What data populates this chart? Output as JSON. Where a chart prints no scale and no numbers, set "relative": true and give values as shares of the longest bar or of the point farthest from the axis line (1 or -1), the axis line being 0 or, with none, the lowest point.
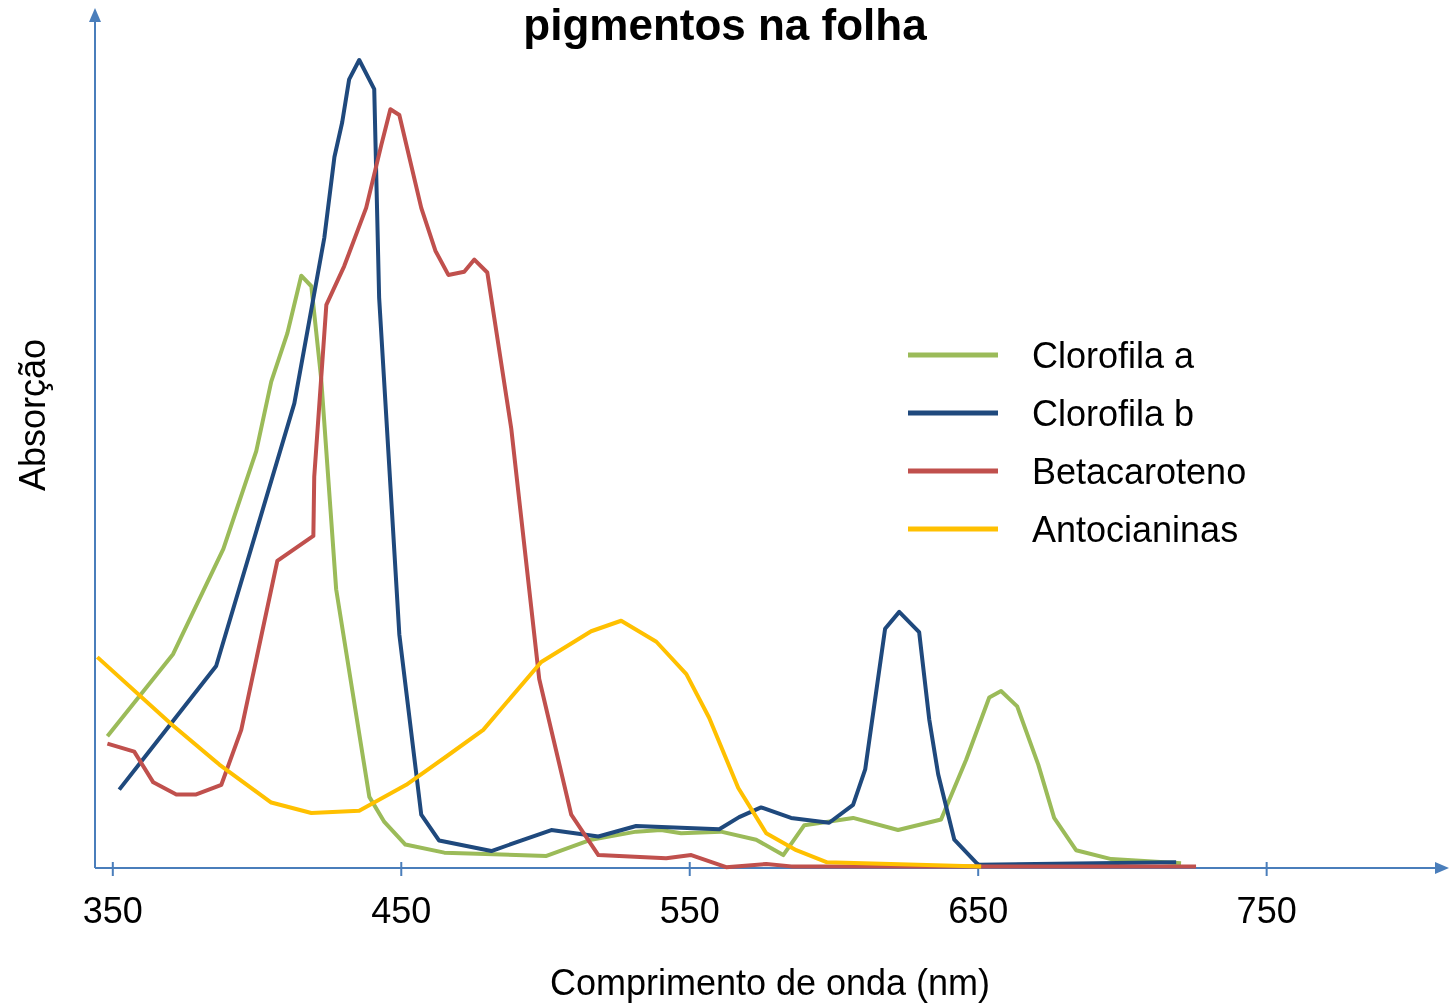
{
  "chart_data": {
    "type": "line",
    "title": "pigmentos na folha",
    "xlabel": "Comprimento de onda (nm)",
    "ylabel": "Absorção",
    "relative": true,
    "xlim": [
      344,
      812
    ],
    "xticks": [
      350,
      450,
      550,
      650,
      750
    ],
    "grid": false,
    "legend": "right",
    "marker": "none",
    "line_style": "solid",
    "series": [
      {
        "name": "Clorofila a",
        "color": "#9bbb59",
        "x": [
          348.3,
          371.1,
          388.5,
          399.9,
          405.1,
          410.7,
          415.5,
          419.0,
          422.4,
          427.6,
          439.1,
          444.3,
          451.6,
          465.1,
          500.5,
          516.0,
          531.6,
          540.2,
          547.2,
          561.0,
          573.2,
          582.6,
          589.9,
          606.8,
          622.4,
          637.3,
          646.0,
          654.0,
          658.1,
          663.7,
          671.0,
          676.5,
          684.1,
          696.3,
          720.5
        ],
        "values": [
          0.163,
          0.265,
          0.395,
          0.516,
          0.602,
          0.662,
          0.733,
          0.72,
          0.606,
          0.345,
          0.088,
          0.057,
          0.029,
          0.019,
          0.015,
          0.035,
          0.045,
          0.047,
          0.043,
          0.045,
          0.035,
          0.016,
          0.053,
          0.062,
          0.047,
          0.06,
          0.134,
          0.211,
          0.219,
          0.2,
          0.128,
          0.062,
          0.022,
          0.011,
          0.006
        ]
      },
      {
        "name": "Clorofila b",
        "color": "#1f497d",
        "x": [
          352.4,
          386.0,
          413.1,
          423.5,
          427.0,
          429.7,
          432.1,
          435.6,
          440.8,
          442.5,
          449.5,
          457.1,
          463.3,
          481.4,
          502.2,
          518.5,
          531.6,
          560.4,
          567.3,
          574.9,
          585.3,
          598.5,
          606.8,
          611.0,
          617.9,
          622.8,
          629.7,
          633.2,
          636.3,
          641.9,
          650.2,
          718.8
        ],
        "values": [
          0.097,
          0.25,
          0.575,
          0.78,
          0.88,
          0.923,
          0.976,
          1,
          0.964,
          0.706,
          0.289,
          0.066,
          0.034,
          0.021,
          0.047,
          0.039,
          0.052,
          0.048,
          0.063,
          0.075,
          0.062,
          0.056,
          0.078,
          0.122,
          0.296,
          0.317,
          0.292,
          0.184,
          0.116,
          0.035,
          0.004,
          0.007
        ]
      },
      {
        "name": "Betacaroteno",
        "color": "#c0504d",
        "x": [
          348.3,
          357.6,
          364.2,
          372.2,
          379.1,
          387.8,
          394.7,
          407.2,
          419.7,
          420.0,
          424.2,
          430.4,
          438.0,
          443.2,
          446.4,
          449.5,
          457.1,
          462.0,
          466.5,
          472.0,
          475.5,
          480.0,
          488.3,
          498.0,
          509.1,
          518.5,
          542.0,
          550.7,
          562.8,
          576.7,
          585.4,
          725.7
        ],
        "values": [
          0.154,
          0.144,
          0.106,
          0.091,
          0.091,
          0.103,
          0.171,
          0.38,
          0.411,
          0.484,
          0.697,
          0.745,
          0.817,
          0.894,
          0.939,
          0.932,
          0.817,
          0.764,
          0.734,
          0.738,
          0.753,
          0.737,
          0.544,
          0.234,
          0.066,
          0.016,
          0.012,
          0.016,
          0.001,
          0.005,
          0.002,
          0.002
        ]
      },
      {
        "name": "Antocianinas",
        "color": "#ffc000",
        "x": [
          344.8,
          370.5,
          387.1,
          405.1,
          419.0,
          435.6,
          451.9,
          465.8,
          478.6,
          498.7,
          516.0,
          526.4,
          538.6,
          549.0,
          556.9,
          567.0,
          576.7,
          587.1,
          597.8,
          651.2
        ],
        "values": [
          0.261,
          0.178,
          0.128,
          0.081,
          0.068,
          0.071,
          0.103,
          0.138,
          0.171,
          0.255,
          0.293,
          0.306,
          0.28,
          0.24,
          0.186,
          0.099,
          0.043,
          0.022,
          0.007,
          0.002
        ]
      }
    ]
  }
}
